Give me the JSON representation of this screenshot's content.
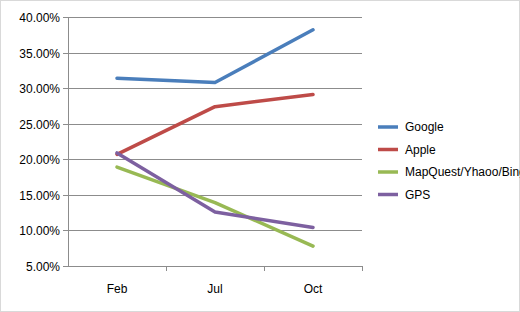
{
  "chart_data": {
    "type": "line",
    "categories": [
      "Feb",
      "Jul",
      "Oct"
    ],
    "series": [
      {
        "name": "Google",
        "color": "#4a7ebb",
        "values": [
          31.4,
          30.8,
          38.2
        ]
      },
      {
        "name": "Apple",
        "color": "#be4b48",
        "values": [
          20.7,
          27.4,
          29.1
        ]
      },
      {
        "name": "MapQuest/Yhaoo/Bing",
        "color": "#98b954",
        "values": [
          18.9,
          13.9,
          7.8
        ]
      },
      {
        "name": "GPS",
        "color": "#7d60a0",
        "values": [
          20.9,
          12.6,
          10.4
        ]
      }
    ],
    "ylim": [
      5,
      40
    ],
    "yticks": [
      {
        "value": 5,
        "label": "5.00%"
      },
      {
        "value": 10,
        "label": "10.00%"
      },
      {
        "value": 15,
        "label": "15.00%"
      },
      {
        "value": 20,
        "label": "20.00%"
      },
      {
        "value": 25,
        "label": "25.00%"
      },
      {
        "value": 30,
        "label": "30.00%"
      },
      {
        "value": 35,
        "label": "35.00%"
      },
      {
        "value": 40,
        "label": "40.00%"
      }
    ],
    "grid": true,
    "legend": "right"
  }
}
